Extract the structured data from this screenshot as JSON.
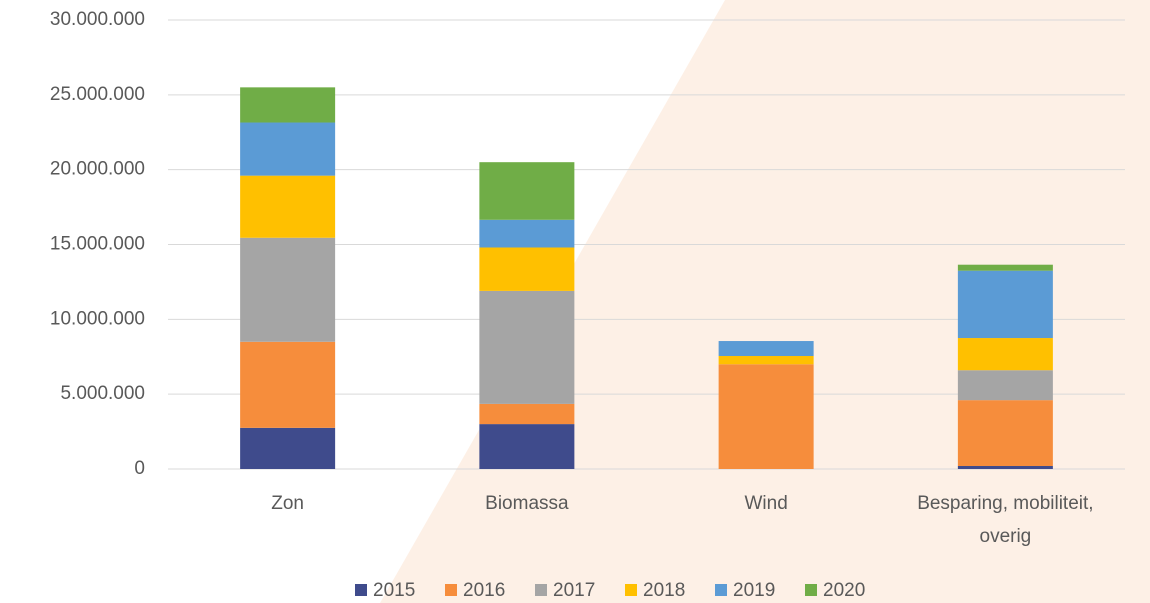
{
  "chart_data": {
    "type": "stacked_bar",
    "categories": [
      "Zon",
      "Biomassa",
      "Wind",
      "Besparing, mobiliteit, overig"
    ],
    "series": [
      {
        "name": "2015",
        "color": "#3f4b8c",
        "values": [
          2750000,
          3000000,
          0,
          200000
        ]
      },
      {
        "name": "2016",
        "color": "#f68d3c",
        "values": [
          5750000,
          1350000,
          7000000,
          4400000
        ]
      },
      {
        "name": "2017",
        "color": "#a5a5a5",
        "values": [
          6950000,
          7550000,
          0,
          2000000
        ]
      },
      {
        "name": "2018",
        "color": "#ffc000",
        "values": [
          4150000,
          2900000,
          550000,
          2150000
        ]
      },
      {
        "name": "2019",
        "color": "#5b9bd5",
        "values": [
          3550000,
          1850000,
          1000000,
          4500000
        ]
      },
      {
        "name": "2020",
        "color": "#70ad47",
        "values": [
          2350000,
          3850000,
          0,
          400000
        ]
      }
    ],
    "ylim": [
      0,
      30000000
    ],
    "yticks": [
      0,
      {
        "value": 5000000,
        "label": "5.000.000"
      },
      {
        "value": 10000000,
        "label": "10.000.000"
      },
      {
        "value": 15000000,
        "label": "15.000.000"
      },
      {
        "value": 20000000,
        "label": "20.000.000"
      },
      {
        "value": 25000000,
        "label": "25.000.000"
      },
      {
        "value": 30000000,
        "label": "30.000.000"
      }
    ],
    "grid": true,
    "legend": "bottom"
  }
}
